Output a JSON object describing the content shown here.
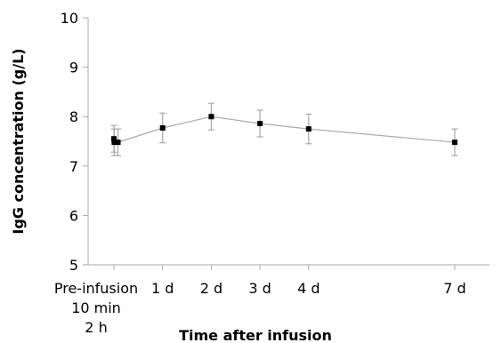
{
  "chart_data": {
    "type": "line",
    "title": "",
    "xlabel": "Time after infusion",
    "ylabel": "IgG concentration (g/L)",
    "ylim": [
      5,
      10
    ],
    "yticks": [
      5,
      6,
      7,
      8,
      9,
      10
    ],
    "xlim_days": [
      0,
      7
    ],
    "xticks": [
      {
        "day": 0,
        "lines": [
          "Pre-infusion",
          "10 min",
          "2 h"
        ]
      },
      {
        "day": 1,
        "lines": [
          "1 d"
        ]
      },
      {
        "day": 2,
        "lines": [
          "2 d"
        ]
      },
      {
        "day": 3,
        "lines": [
          "3 d"
        ]
      },
      {
        "day": 4,
        "lines": [
          "4 d"
        ]
      },
      {
        "day": 7,
        "lines": [
          "7 d"
        ]
      }
    ],
    "grid": false,
    "series": [
      {
        "points": [
          {
            "x_label": "Pre-infusion",
            "day": 0,
            "y": 7.55,
            "err": 0.27
          },
          {
            "x_label": "10 min",
            "day": 0.007,
            "y": 7.48,
            "err": 0.27
          },
          {
            "x_label": "2 h",
            "day": 0.083,
            "y": 7.48,
            "err": 0.27
          },
          {
            "x_label": "1 d",
            "day": 1,
            "y": 7.77,
            "err": 0.3
          },
          {
            "x_label": "2 d",
            "day": 2,
            "y": 8.0,
            "err": 0.27
          },
          {
            "x_label": "3 d",
            "day": 3,
            "y": 7.86,
            "err": 0.27
          },
          {
            "x_label": "4 d",
            "day": 4,
            "y": 7.75,
            "err": 0.3
          },
          {
            "x_label": "7 d",
            "day": 7,
            "y": 7.48,
            "err": 0.27
          }
        ]
      }
    ],
    "colors": {
      "line": "#a9a9a9",
      "marker": "#000000",
      "axis": "#a9a9a9",
      "text": "#000000"
    }
  }
}
